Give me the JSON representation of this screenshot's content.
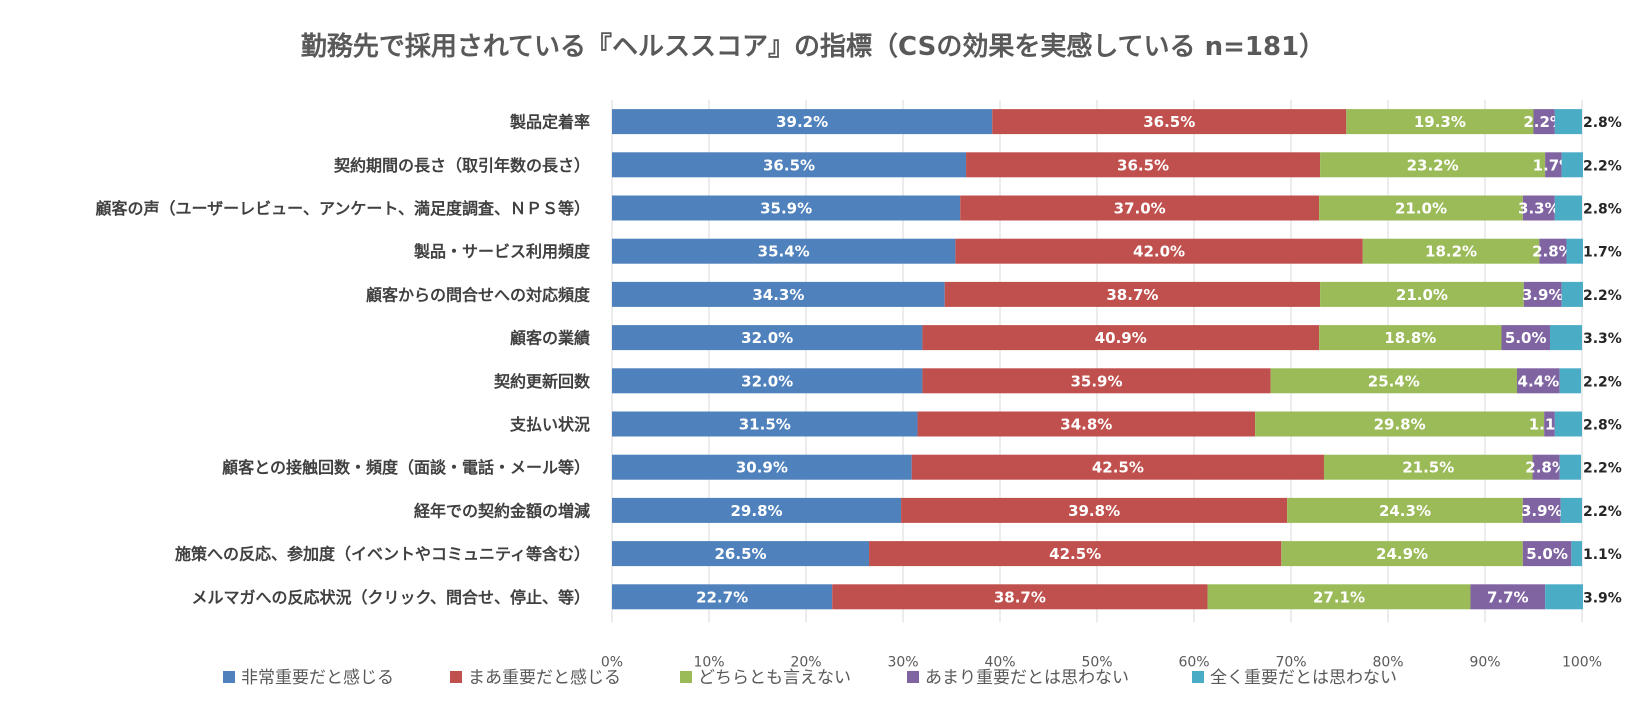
{
  "chart_data": {
    "type": "bar",
    "orientation": "horizontal",
    "stacked": "percent",
    "title": "勤務先で採用されている『ヘルススコア』の指標（CSの効果を実感している n=181）",
    "categories": [
      "製品定着率",
      "契約期間の長さ（取引年数の長さ）",
      "顧客の声（ユーザーレビュー、アンケート、満足度調査、ＮＰＳ等）",
      "製品・サービス利用頻度",
      "顧客からの問合せへの対応頻度",
      "顧客の業績",
      "契約更新回数",
      "支払い状況",
      "顧客との接触回数・頻度（面談・電話・メール等）",
      "経年での契約金額の増減",
      "施策への反応、参加度（イベントやコミュニティ等含む）",
      "メルマガへの反応状況（クリック、問合せ、停止、等）"
    ],
    "series": [
      {
        "name": "非常重要だと感じる",
        "color": "#4f81bd",
        "values": [
          39.2,
          36.5,
          35.9,
          35.4,
          34.3,
          32.0,
          32.0,
          31.5,
          30.9,
          29.8,
          26.5,
          22.7
        ]
      },
      {
        "name": "まあ重要だと感じる",
        "color": "#c0504d",
        "values": [
          36.5,
          36.5,
          37.0,
          42.0,
          38.7,
          40.9,
          35.9,
          34.8,
          42.5,
          39.8,
          42.5,
          38.7
        ]
      },
      {
        "name": "どちらとも言えない",
        "color": "#9bbb59",
        "values": [
          19.3,
          23.2,
          21.0,
          18.2,
          21.0,
          18.8,
          25.4,
          29.8,
          21.5,
          24.3,
          24.9,
          27.1
        ]
      },
      {
        "name": "あまり重要だとは思わない",
        "color": "#8064a2",
        "values": [
          2.2,
          1.7,
          3.3,
          2.8,
          3.9,
          5.0,
          4.4,
          1.1,
          2.8,
          3.9,
          5.0,
          7.7
        ]
      },
      {
        "name": "全く重要だとは思わない",
        "color": "#4bacc6",
        "values": [
          2.8,
          2.2,
          2.8,
          1.7,
          2.2,
          3.3,
          2.2,
          2.8,
          2.2,
          2.2,
          1.1,
          3.9
        ]
      }
    ],
    "xlim": [
      0,
      100
    ],
    "x_ticks": [
      "0%",
      "10%",
      "20%",
      "30%",
      "40%",
      "50%",
      "60%",
      "70%",
      "80%",
      "90%",
      "100%"
    ],
    "grid": true,
    "legend_position": "bottom"
  }
}
